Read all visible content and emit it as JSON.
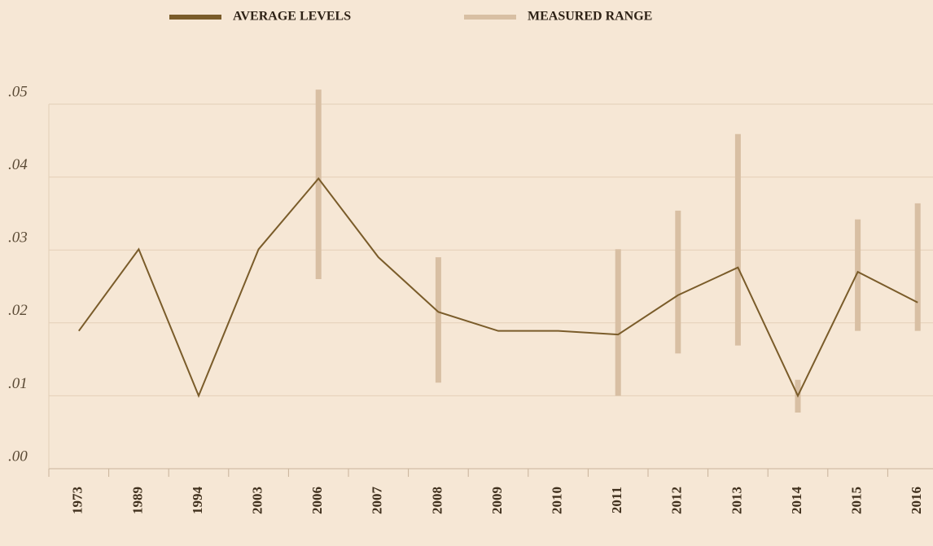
{
  "chart_data": {
    "type": "line",
    "categories": [
      "1973",
      "1989",
      "1994",
      "2003",
      "2006",
      "2007",
      "2008",
      "2009",
      "2010",
      "2011",
      "2012",
      "2013",
      "2014",
      "2015",
      "2016"
    ],
    "series": [
      {
        "name": "AVERAGE LEVELS",
        "color": "#7a5c2a",
        "values": [
          0.0189,
          0.0301,
          0.01,
          0.0301,
          0.0398,
          0.029,
          0.0215,
          0.0189,
          0.0189,
          0.0184,
          0.0238,
          0.0276,
          0.01,
          0.027,
          0.0228
        ]
      }
    ],
    "ranges": {
      "name": "MEASURED RANGE",
      "color": "#d8bfa3",
      "low": [
        null,
        null,
        null,
        null,
        0.026,
        null,
        0.0118,
        null,
        null,
        0.01,
        0.0158,
        0.0169,
        0.0077,
        0.0189,
        0.0189
      ],
      "high": [
        null,
        null,
        null,
        null,
        0.052,
        null,
        0.029,
        null,
        null,
        0.0301,
        0.0354,
        0.0459,
        0.0122,
        0.0342,
        0.0364
      ]
    },
    "ylim": [
      0,
      0.05
    ],
    "yticks": [
      {
        "value": 0,
        "label": ".00"
      },
      {
        "value": 0.01,
        "label": ".01"
      },
      {
        "value": 0.02,
        "label": ".02"
      },
      {
        "value": 0.03,
        "label": ".03"
      },
      {
        "value": 0.04,
        "label": ".04"
      },
      {
        "value": 0.05,
        "label": ".05"
      }
    ],
    "grid": true
  }
}
